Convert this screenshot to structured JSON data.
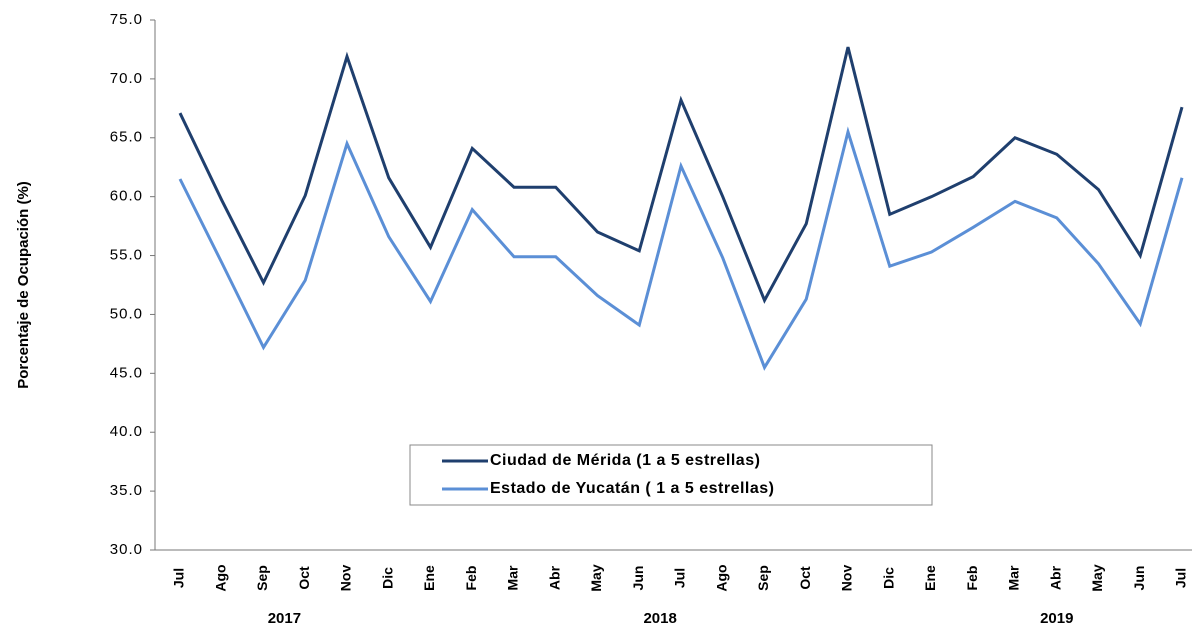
{
  "chart_data": {
    "type": "line",
    "y_label": "Porcentaje de Ocupación (%)",
    "categories": [
      "Jul",
      "Ago",
      "Sep",
      "Oct",
      "Nov",
      "Dic",
      "Ene",
      "Feb",
      "Mar",
      "Abr",
      "May",
      "Jun",
      "Jul",
      "Ago",
      "Sep",
      "Oct",
      "Nov",
      "Dic",
      "Ene",
      "Feb",
      "Mar",
      "Abr",
      "May",
      "Jun",
      "Jul"
    ],
    "year_groups": [
      {
        "label": "2017",
        "count": 6
      },
      {
        "label": "2018",
        "count": 12
      },
      {
        "label": "2019",
        "count": 7
      }
    ],
    "series": [
      {
        "name": "Ciudad de Mérida (1 a 5 estrellas)",
        "color": "#1f3f6e",
        "values": [
          67.1,
          59.7,
          52.7,
          60.1,
          71.9,
          61.6,
          55.7,
          64.1,
          60.8,
          60.8,
          57.0,
          55.4,
          68.2,
          60.0,
          51.2,
          57.7,
          72.7,
          58.5,
          60.0,
          61.7,
          65.0,
          63.6,
          60.6,
          55.0,
          67.6
        ]
      },
      {
        "name": "Estado de Yucatán ( 1 a 5 estrellas)",
        "color": "#5b8fd6",
        "values": [
          61.5,
          54.4,
          47.2,
          52.9,
          64.5,
          56.6,
          51.1,
          58.9,
          54.9,
          54.9,
          51.6,
          49.1,
          62.6,
          54.8,
          45.5,
          51.3,
          65.5,
          54.1,
          55.3,
          57.4,
          59.6,
          58.2,
          54.3,
          49.2,
          61.6
        ]
      }
    ],
    "ylim": [
      30,
      75
    ],
    "yticks": [
      {
        "value": 30,
        "label": "30.0"
      },
      {
        "value": 35,
        "label": "35.0"
      },
      {
        "value": 40,
        "label": "40.0"
      },
      {
        "value": 45,
        "label": "45.0"
      },
      {
        "value": 50,
        "label": "50.0"
      },
      {
        "value": 55,
        "label": "55.0"
      },
      {
        "value": 60,
        "label": "60.0"
      },
      {
        "value": 65,
        "label": "65.0"
      },
      {
        "value": 70,
        "label": "70.0"
      },
      {
        "value": 75,
        "label": "75.0"
      }
    ],
    "legend": "bottom-center"
  }
}
